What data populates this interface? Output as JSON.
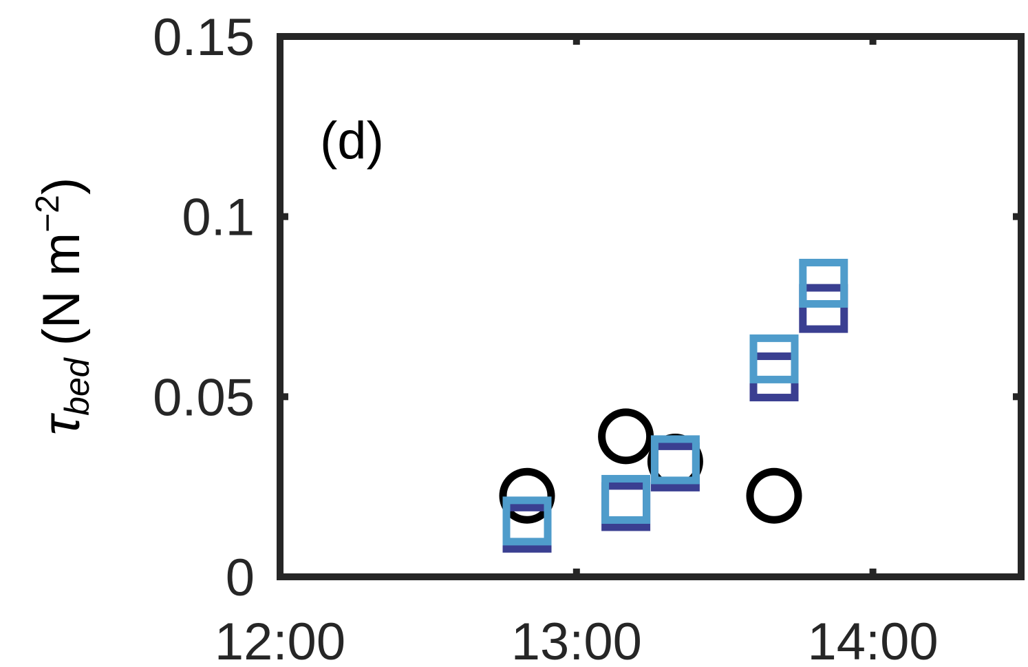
{
  "chart_data": {
    "type": "scatter",
    "panel_label": "(d)",
    "ylabel": {
      "symbol": "τ",
      "subscript": "bed",
      "unit_open": "(N m",
      "unit_exp": "−2",
      "unit_close": ")"
    },
    "xlim": [
      "12:00",
      "14:30"
    ],
    "ylim": [
      0,
      0.15
    ],
    "x_ticks": [
      "12:00",
      "13:00",
      "14:00"
    ],
    "y_ticks": [
      "0",
      "0.05",
      "0.1",
      "0.15"
    ],
    "grid": false,
    "colors": {
      "axis": "#262626",
      "circle": "#000000",
      "square_light": "#4f9ccb",
      "square_dark": "#3a3f91"
    },
    "series": [
      {
        "marker": "circle",
        "color": "#000000",
        "points": [
          {
            "x": "12:50",
            "y": 0.0225
          },
          {
            "x": "13:10",
            "y": 0.039
          },
          {
            "x": "13:20",
            "y": 0.032
          },
          {
            "x": "13:40",
            "y": 0.0225
          }
        ]
      },
      {
        "marker": "square",
        "color": "#3a3f91",
        "points": [
          {
            "x": "12:50",
            "y": 0.0135
          },
          {
            "x": "13:10",
            "y": 0.0195
          },
          {
            "x": "13:20",
            "y": 0.0305
          },
          {
            "x": "13:40",
            "y": 0.0555
          },
          {
            "x": "13:50",
            "y": 0.0745
          }
        ]
      },
      {
        "marker": "square",
        "color": "#4f9ccb",
        "points": [
          {
            "x": "12:50",
            "y": 0.0155
          },
          {
            "x": "13:10",
            "y": 0.0215
          },
          {
            "x": "13:20",
            "y": 0.0325
          },
          {
            "x": "13:40",
            "y": 0.0605
          },
          {
            "x": "13:50",
            "y": 0.0815
          }
        ]
      }
    ]
  }
}
